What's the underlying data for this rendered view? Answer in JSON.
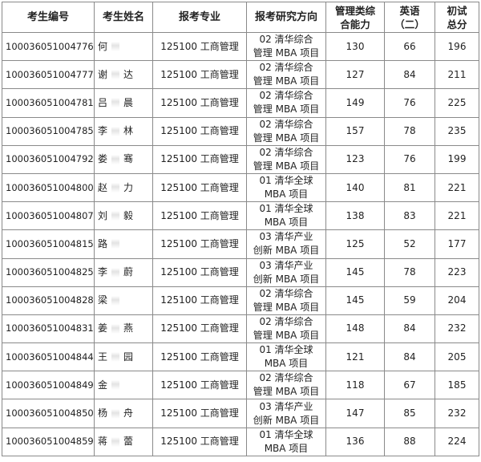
{
  "headers": [
    "考生编号",
    "考生姓名",
    "报考专业",
    "报考研究方向",
    "管理类综合能力",
    "英语（二）",
    "初试总分"
  ],
  "header_lines": {
    "mgmt": [
      "管理类综",
      "合能力"
    ],
    "eng": [
      "英语",
      "（二）"
    ],
    "total": [
      "初试",
      "总分"
    ]
  },
  "rows": [
    {
      "id": "100036051004776",
      "surname": "何",
      "given": "",
      "major": "125100 工商管理",
      "dir1": "02 清华综合",
      "dir2": "管理 MBA 项目",
      "mgmt": "130",
      "eng": "66",
      "total": "196"
    },
    {
      "id": "100036051004777",
      "surname": "谢",
      "given": "达",
      "major": "125100 工商管理",
      "dir1": "02 清华综合",
      "dir2": "管理 MBA 项目",
      "mgmt": "127",
      "eng": "84",
      "total": "211"
    },
    {
      "id": "100036051004781",
      "surname": "吕",
      "given": "晨",
      "major": "125100 工商管理",
      "dir1": "02 清华综合",
      "dir2": "管理 MBA 项目",
      "mgmt": "149",
      "eng": "76",
      "total": "225"
    },
    {
      "id": "100036051004785",
      "surname": "李",
      "given": "林",
      "major": "125100 工商管理",
      "dir1": "02 清华综合",
      "dir2": "管理 MBA 项目",
      "mgmt": "157",
      "eng": "78",
      "total": "235"
    },
    {
      "id": "100036051004792",
      "surname": "娄",
      "given": "骞",
      "major": "125100 工商管理",
      "dir1": "02 清华综合",
      "dir2": "管理 MBA 项目",
      "mgmt": "123",
      "eng": "76",
      "total": "199"
    },
    {
      "id": "100036051004800",
      "surname": "赵",
      "given": "力",
      "major": "125100 工商管理",
      "dir1": "01 清华全球",
      "dir2": "MBA 项目",
      "mgmt": "140",
      "eng": "81",
      "total": "221"
    },
    {
      "id": "100036051004807",
      "surname": "刘",
      "given": "毅",
      "major": "125100 工商管理",
      "dir1": "01 清华全球",
      "dir2": "MBA 项目",
      "mgmt": "138",
      "eng": "83",
      "total": "221"
    },
    {
      "id": "100036051004815",
      "surname": "路",
      "given": "",
      "major": "125100 工商管理",
      "dir1": "03 清华产业",
      "dir2": "创新 MBA 项目",
      "mgmt": "125",
      "eng": "52",
      "total": "177"
    },
    {
      "id": "100036051004825",
      "surname": "李",
      "given": "蔚",
      "major": "125100 工商管理",
      "dir1": "03 清华产业",
      "dir2": "创新 MBA 项目",
      "mgmt": "145",
      "eng": "78",
      "total": "223"
    },
    {
      "id": "100036051004828",
      "surname": "梁",
      "given": "",
      "major": "125100 工商管理",
      "dir1": "02 清华综合",
      "dir2": "管理 MBA 项目",
      "mgmt": "145",
      "eng": "59",
      "total": "204"
    },
    {
      "id": "100036051004831",
      "surname": "姜",
      "given": "燕",
      "major": "125100 工商管理",
      "dir1": "02 清华综合",
      "dir2": "管理 MBA 项目",
      "mgmt": "148",
      "eng": "84",
      "total": "232"
    },
    {
      "id": "100036051004844",
      "surname": "王",
      "given": "园",
      "major": "125100 工商管理",
      "dir1": "01 清华全球",
      "dir2": "MBA 项目",
      "mgmt": "121",
      "eng": "84",
      "total": "205"
    },
    {
      "id": "100036051004849",
      "surname": "金",
      "given": "",
      "major": "125100 工商管理",
      "dir1": "02 清华综合",
      "dir2": "管理 MBA 项目",
      "mgmt": "118",
      "eng": "67",
      "total": "185"
    },
    {
      "id": "100036051004850",
      "surname": "杨",
      "given": "舟",
      "major": "125100 工商管理",
      "dir1": "03 清华产业",
      "dir2": "创新 MBA 项目",
      "mgmt": "147",
      "eng": "85",
      "total": "232"
    },
    {
      "id": "100036051004859",
      "surname": "蒋",
      "given": "蕾",
      "major": "125100 工商管理",
      "dir1": "01 清华全球",
      "dir2": "MBA 项目",
      "mgmt": "136",
      "eng": "88",
      "total": "224"
    }
  ]
}
